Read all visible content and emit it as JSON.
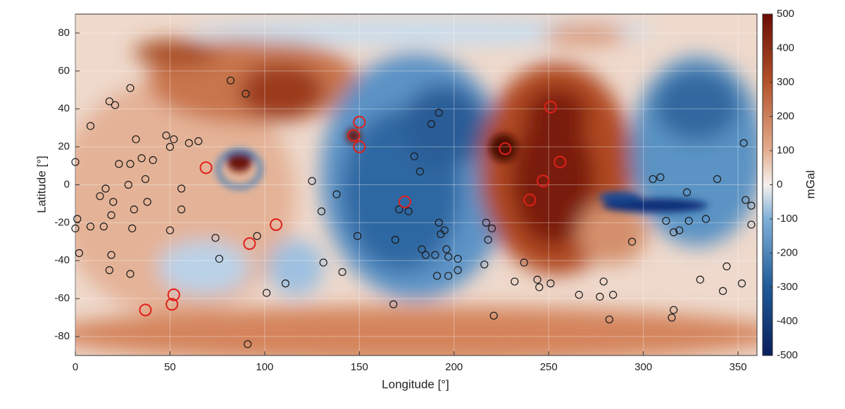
{
  "chart_data": {
    "type": "scatter",
    "x_label": "Longitude [°]",
    "y_label": "Latitude [°]",
    "xlim": [
      0,
      360
    ],
    "ylim": [
      -90,
      90
    ],
    "xticks": [
      0,
      50,
      100,
      150,
      200,
      250,
      300,
      350
    ],
    "yticks": [
      -80,
      -60,
      -40,
      -20,
      0,
      20,
      40,
      60,
      80
    ],
    "grid": true,
    "colorbar": {
      "label": "mGal",
      "lim": [
        -500,
        500
      ],
      "ticks": [
        -500,
        -400,
        -300,
        -200,
        -100,
        0,
        100,
        200,
        300,
        400,
        500
      ]
    },
    "series": [
      {
        "color": "#1a1a1a",
        "x": [
          29,
          82,
          90,
          18,
          21,
          8,
          48,
          52,
          32,
          65,
          60,
          50,
          0,
          35,
          41,
          23,
          29,
          37,
          125,
          28,
          16,
          56,
          13,
          138,
          20,
          38,
          56,
          31,
          171,
          176,
          130,
          1,
          19,
          8,
          0,
          15,
          30,
          50,
          74,
          96,
          149,
          169,
          2,
          19,
          76,
          131,
          141,
          18,
          29,
          111,
          101,
          168,
          91,
          188,
          192,
          179,
          182,
          192,
          193,
          195,
          217,
          220,
          218,
          183,
          185,
          190,
          196,
          197,
          202,
          216,
          237,
          191,
          197,
          202,
          232,
          244,
          245,
          251,
          221,
          266,
          279,
          277,
          284,
          282,
          294,
          305,
          309,
          312,
          316,
          319,
          324,
          323,
          333,
          339,
          353,
          354,
          357,
          357,
          330,
          344,
          352,
          342,
          316,
          315
        ],
        "y": [
          51,
          55,
          48,
          44,
          42,
          31,
          26,
          24,
          24,
          23,
          22,
          20,
          12,
          14,
          13,
          11,
          11,
          3,
          2,
          0,
          -2,
          -2,
          -6,
          -5,
          -9,
          -9,
          -13,
          -13,
          -13,
          -14,
          -14,
          -18,
          -16,
          -22,
          -23,
          -22,
          -23,
          -24,
          -28,
          -27,
          -27,
          -29,
          -36,
          -37,
          -39,
          -41,
          -46,
          -45,
          -47,
          -52,
          -57,
          -63,
          -84,
          32,
          38,
          15,
          7,
          -20,
          -26,
          -24,
          -20,
          -23,
          -29,
          -34,
          -37,
          -37,
          -34,
          -38,
          -39,
          -42,
          -41,
          -48,
          -48,
          -45,
          -51,
          -50,
          -54,
          -52,
          -69,
          -58,
          -51,
          -59,
          -58,
          -71,
          -30,
          3,
          4,
          -19,
          -25,
          -24,
          -19,
          -4,
          -18,
          3,
          22,
          -8,
          -11,
          -21,
          -50,
          -43,
          -52,
          -56,
          -66,
          -70
        ]
      },
      {
        "color": "#e0201b",
        "x": [
          69,
          106,
          92,
          52,
          51,
          37,
          150,
          147,
          150,
          174,
          227,
          251,
          256,
          247,
          240
        ],
        "y": [
          9,
          -21,
          -31,
          -58,
          -63,
          -66,
          33,
          26,
          20,
          -9,
          19,
          41,
          12,
          2,
          -8
        ]
      }
    ]
  }
}
